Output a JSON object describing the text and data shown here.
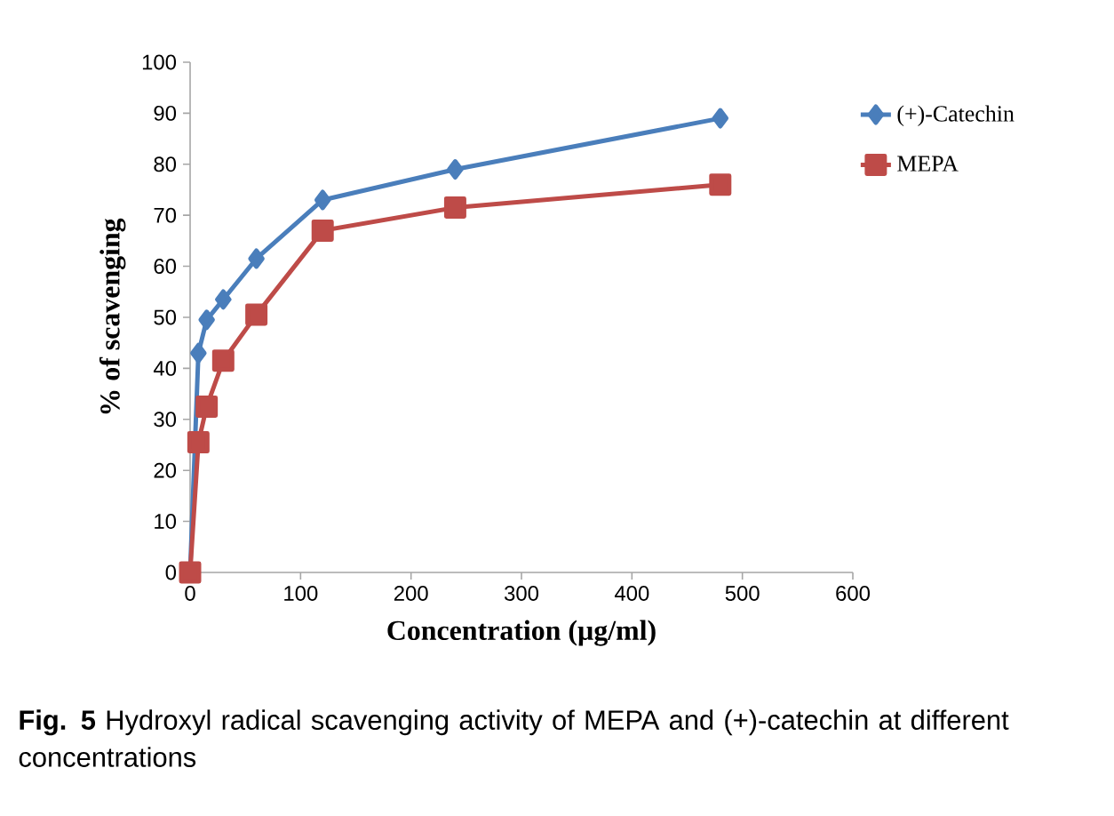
{
  "chart_data": {
    "type": "line",
    "xlabel": "Concentration (µg/ml)",
    "ylabel": "% of scavenging",
    "x": [
      0,
      7.5,
      15,
      30,
      60,
      120,
      240,
      480
    ],
    "series": [
      {
        "name": "(+)-Catechin",
        "color": "#4a7ebb",
        "marker": "diamond",
        "values": [
          0,
          43,
          49.5,
          53.5,
          61.5,
          73,
          79,
          89
        ]
      },
      {
        "name": "MEPA",
        "color": "#be4b48",
        "marker": "square",
        "values": [
          0,
          25.5,
          32.5,
          41.5,
          50.5,
          67,
          71.5,
          76
        ]
      }
    ],
    "xlim": [
      0,
      600
    ],
    "ylim": [
      0,
      100
    ],
    "xticks": [
      0,
      100,
      200,
      300,
      400,
      500,
      600
    ],
    "yticks": [
      0,
      10,
      20,
      30,
      40,
      50,
      60,
      70,
      80,
      90,
      100
    ],
    "legend": "right",
    "grid": false,
    "line_style": "solid",
    "annotations": [
      "**Fig. 5** Hydroxyl radical scavenging activity of MEPA and (+)-catechin at different concentrations"
    ]
  }
}
